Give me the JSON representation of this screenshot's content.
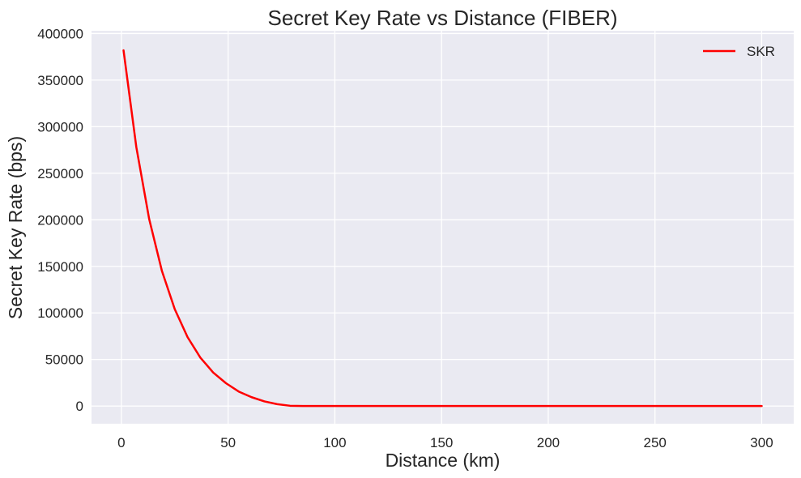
{
  "chart_data": {
    "type": "line",
    "title": "Secret Key Rate vs Distance (FIBER)",
    "xlabel": "Distance (km)",
    "ylabel": "Secret Key Rate (bps)",
    "xlim": [
      -14,
      315
    ],
    "ylim": [
      -19000,
      403000
    ],
    "x_ticks": [
      0,
      50,
      100,
      150,
      200,
      250,
      300
    ],
    "y_ticks": [
      0,
      50000,
      100000,
      150000,
      200000,
      250000,
      300000,
      350000,
      400000
    ],
    "grid": true,
    "legend_position": "top-right",
    "colors": {
      "plot_background": "#eaeaf2",
      "grid": "#ffffff",
      "series": "#ff0000",
      "text": "#262626"
    },
    "series": [
      {
        "name": "SKR",
        "x": [
          1,
          7,
          13,
          19,
          25,
          31,
          37,
          43,
          49,
          55,
          61,
          67,
          73,
          79,
          85,
          100,
          150,
          200,
          250,
          300
        ],
        "values": [
          382000,
          278000,
          201000,
          145000,
          104000,
          74000,
          52000,
          36000,
          24500,
          15500,
          9500,
          5000,
          2000,
          300,
          0,
          0,
          0,
          0,
          0,
          0
        ]
      }
    ]
  }
}
